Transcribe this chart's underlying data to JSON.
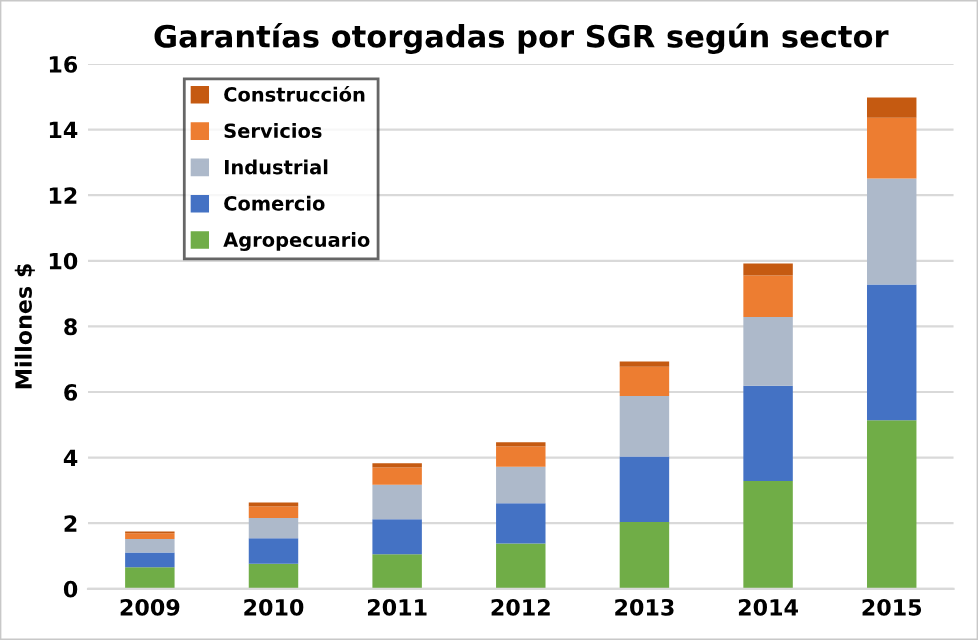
{
  "chart_data": {
    "type": "bar",
    "stacked": true,
    "title": "Garantías otorgadas por SGR según sector",
    "ylabel": "Millones $",
    "categories": [
      "2009",
      "2010",
      "2011",
      "2012",
      "2013",
      "2014",
      "2015"
    ],
    "series": [
      {
        "name": "Agropecuario",
        "color": "#70ad47",
        "values": [
          0.66,
          0.76,
          1.05,
          1.38,
          2.04,
          3.29,
          5.14
        ]
      },
      {
        "name": "Comercio",
        "color": "#4472c4",
        "values": [
          0.45,
          0.78,
          1.07,
          1.23,
          1.99,
          2.9,
          4.14
        ]
      },
      {
        "name": "Industrial",
        "color": "#adb9ca",
        "values": [
          0.41,
          0.62,
          1.05,
          1.11,
          1.85,
          2.1,
          3.23
        ]
      },
      {
        "name": "Servicios",
        "color": "#ed7d31",
        "values": [
          0.17,
          0.35,
          0.53,
          0.62,
          0.89,
          1.26,
          1.85
        ]
      },
      {
        "name": "Construcción",
        "color": "#c55a11",
        "values": [
          0.06,
          0.12,
          0.13,
          0.13,
          0.16,
          0.37,
          0.62
        ]
      }
    ],
    "ylim": [
      0,
      16
    ],
    "yticks": [
      0,
      2,
      4,
      6,
      8,
      10,
      12,
      14,
      16
    ],
    "grid": "y",
    "legend": "top left"
  }
}
